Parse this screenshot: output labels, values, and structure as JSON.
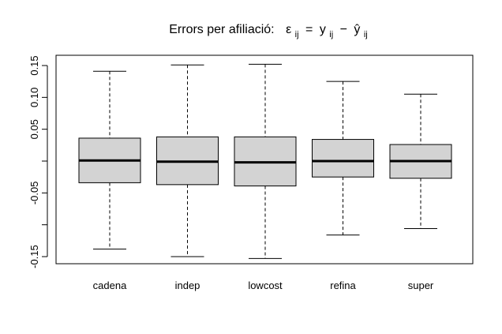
{
  "chart_data": {
    "type": "boxplot",
    "title": {
      "prefix": "Errors per afiliació:",
      "formula_parts": {
        "epsilon": "ε",
        "sub_ij": "ij",
        "equals": "=",
        "y": "y",
        "minus": "−",
        "yhat": "ŷ"
      }
    },
    "xlabel": "",
    "ylabel": "",
    "ylim": [
      -0.16,
      0.16
    ],
    "y_ticks": [
      -0.15,
      -0.1,
      -0.05,
      0.0,
      0.05,
      0.1,
      0.15
    ],
    "y_tick_labels": [
      "-0.15",
      "",
      "-0.05",
      "",
      "0.05",
      "0.10",
      "0.15"
    ],
    "categories": [
      "cadena",
      "indep",
      "lowcost",
      "refina",
      "super"
    ],
    "boxes": [
      {
        "name": "cadena",
        "whisker_low": -0.138,
        "q1": -0.034,
        "median": 0.001,
        "q3": 0.036,
        "whisker_high": 0.141
      },
      {
        "name": "indep",
        "whisker_low": -0.15,
        "q1": -0.037,
        "median": -0.001,
        "q3": 0.038,
        "whisker_high": 0.151
      },
      {
        "name": "lowcost",
        "whisker_low": -0.153,
        "q1": -0.039,
        "median": -0.002,
        "q3": 0.038,
        "whisker_high": 0.152
      },
      {
        "name": "refina",
        "whisker_low": -0.116,
        "q1": -0.025,
        "median": 0.0,
        "q3": 0.034,
        "whisker_high": 0.125
      },
      {
        "name": "super",
        "whisker_low": -0.106,
        "q1": -0.027,
        "median": 0.0,
        "q3": 0.026,
        "whisker_high": 0.105
      }
    ],
    "colors": {
      "box_fill": "#d3d3d3",
      "stroke": "#000000"
    },
    "grid": false,
    "legend": "none"
  }
}
